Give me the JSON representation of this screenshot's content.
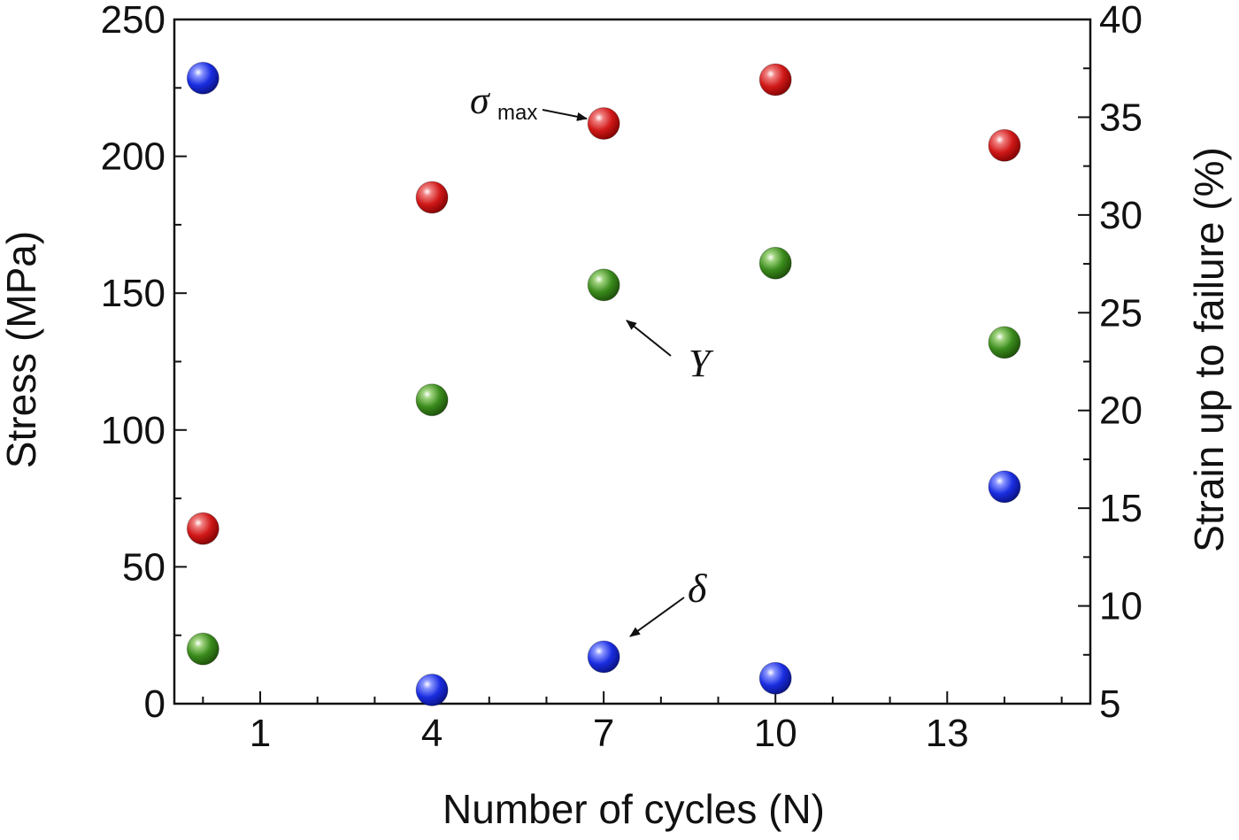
{
  "chart_data": {
    "type": "scatter",
    "title": "",
    "xlabel": "Number of cycles (N)",
    "ylabel_left": "Stress (MPa)",
    "ylabel_right": "Strain up to failure (%)",
    "x_ticks": [
      1,
      4,
      7,
      10,
      13
    ],
    "x_range": [
      -0.5,
      15.5
    ],
    "y_left_ticks": [
      0,
      50,
      100,
      150,
      200,
      250
    ],
    "y_left_range": [
      0,
      250
    ],
    "y_right_ticks": [
      5,
      10,
      15,
      20,
      25,
      30,
      35,
      40
    ],
    "y_right_range": [
      5,
      40
    ],
    "grid": false,
    "series": [
      {
        "axis": "left",
        "color": "#d01818",
        "points": [
          {
            "x": 0,
            "y": 64
          },
          {
            "x": 4,
            "y": 185
          },
          {
            "x": 7,
            "y": 212
          },
          {
            "x": 10,
            "y": 228
          },
          {
            "x": 14,
            "y": 204
          }
        ]
      },
      {
        "axis": "left",
        "color": "#3a8a1c",
        "points": [
          {
            "x": 0,
            "y": 20
          },
          {
            "x": 4,
            "y": 111
          },
          {
            "x": 7,
            "y": 153
          },
          {
            "x": 10,
            "y": 161
          },
          {
            "x": 14,
            "y": 132
          }
        ]
      },
      {
        "axis": "right",
        "color": "#1a2de0",
        "points": [
          {
            "x": 0,
            "y": 37.0
          },
          {
            "x": 4,
            "y": 5.7
          },
          {
            "x": 7,
            "y": 7.4
          },
          {
            "x": 10,
            "y": 6.3
          },
          {
            "x": 14,
            "y": 16.1
          }
        ]
      }
    ],
    "annotations": {
      "sigma_symbol": "σ",
      "sigma_subscript": "max",
      "yield_symbol": "Y",
      "delta_symbol": "δ"
    }
  }
}
